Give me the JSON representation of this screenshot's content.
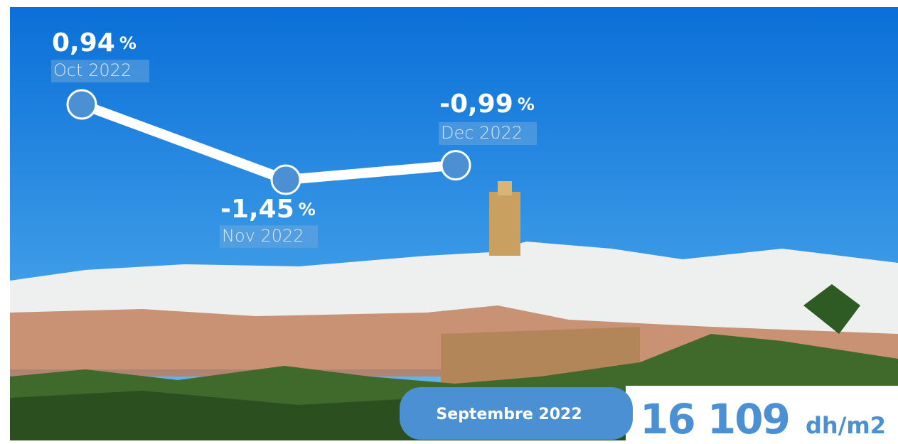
{
  "chart_data": {
    "type": "line",
    "categories": [
      "Oct 2022",
      "Nov 2022",
      "Dec 2022"
    ],
    "values": [
      0.94,
      -1.45,
      -0.99
    ],
    "value_labels": [
      "0,94",
      "-1,45",
      "-0,99"
    ],
    "value_unit": "%",
    "color": "#4a90d2"
  },
  "price_box": {
    "period": "Septembre 2022",
    "value": "16 109",
    "unit": "dh/m2"
  }
}
